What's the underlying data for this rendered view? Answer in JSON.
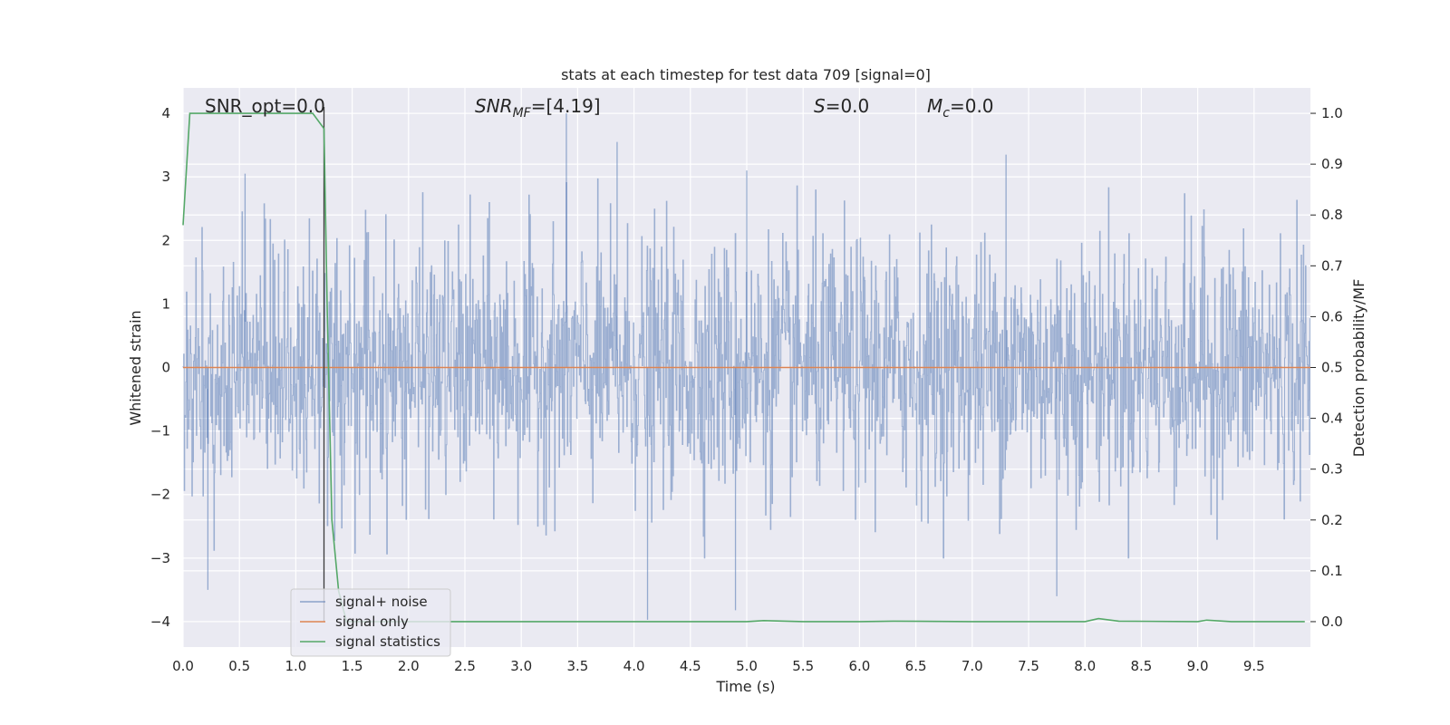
{
  "chart_data": {
    "type": "line",
    "title": "stats at each timestep for test data 709 [signal=0]",
    "xlabel": "Time (s)",
    "ylabel_left": "Whitened strain",
    "ylabel_right": "Detection probability/MF",
    "xlim": [
      0.0,
      10.0
    ],
    "ylim_left": [
      -4.4,
      4.4
    ],
    "ylim_right": [
      -0.05,
      1.05
    ],
    "grid": true,
    "x_ticks": [
      "0.0",
      "0.5",
      "1.0",
      "1.5",
      "2.0",
      "2.5",
      "3.0",
      "3.5",
      "4.0",
      "4.5",
      "5.0",
      "5.5",
      "6.0",
      "6.5",
      "7.0",
      "7.5",
      "8.0",
      "8.5",
      "9.0",
      "9.5"
    ],
    "y_left_ticks": [
      "−4",
      "−3",
      "−2",
      "−1",
      "0",
      "1",
      "2",
      "3",
      "4"
    ],
    "y_right_ticks": [
      "0.0",
      "0.1",
      "0.2",
      "0.3",
      "0.4",
      "0.5",
      "0.6",
      "0.7",
      "0.8",
      "0.9",
      "1.0"
    ],
    "annotations": {
      "snr_opt": "SNR_opt=0.0",
      "snr_mf_main": "SNR",
      "snr_mf_sub": "MF",
      "snr_mf_value": "=[4.19]",
      "s_main": "S",
      "s_value": "=0.0",
      "mc_main": "M",
      "mc_sub": "c",
      "mc_value": "=0.0"
    },
    "vertical_marker_x": 1.25,
    "series": [
      {
        "name": "signal+ noise",
        "color": "#4c72b0",
        "axis": "left",
        "description_envelope": {
          "noise_sigma": 1.0,
          "peak_positive_values": [
            [
              3.4,
              4.0
            ],
            [
              3.85,
              3.55
            ],
            [
              7.3,
              3.35
            ],
            [
              0.55,
              3.05
            ],
            [
              5.0,
              3.1
            ]
          ],
          "peak_negative_values": [
            [
              4.12,
              -3.97
            ],
            [
              4.9,
              -3.82
            ],
            [
              7.75,
              -3.6
            ],
            [
              0.22,
              -3.5
            ]
          ]
        }
      },
      {
        "name": "signal only",
        "color": "#dd8452",
        "axis": "left",
        "x": [
          0.0,
          10.0
        ],
        "y": [
          0.0,
          0.0
        ]
      },
      {
        "name": "signal statistics",
        "color": "#55a868",
        "axis": "right",
        "x": [
          0.0,
          0.06,
          0.1,
          0.2,
          0.5,
          1.0,
          1.15,
          1.25,
          1.28,
          1.32,
          1.38,
          1.45,
          2.0,
          3.0,
          4.0,
          4.5,
          5.0,
          5.15,
          5.5,
          6.0,
          6.3,
          7.0,
          7.5,
          8.0,
          8.12,
          8.3,
          9.0,
          9.08,
          9.3,
          9.95
        ],
        "y": [
          0.78,
          1.0,
          1.0,
          1.0,
          1.0,
          1.0,
          1.0,
          0.97,
          0.6,
          0.2,
          0.06,
          0.0,
          0.0,
          0.0,
          0.0,
          0.0,
          0.0,
          0.002,
          0.0,
          0.0,
          0.001,
          0.0,
          0.0,
          0.0,
          0.006,
          0.001,
          0.0,
          0.003,
          0.0,
          0.0
        ]
      }
    ],
    "legend": {
      "placement": "lower-left",
      "entries": [
        "signal+ noise",
        "signal only",
        "signal statistics"
      ]
    }
  }
}
